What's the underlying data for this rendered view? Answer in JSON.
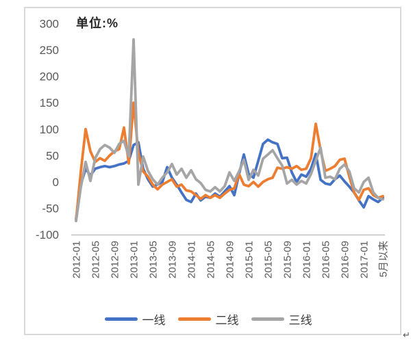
{
  "chart_data": {
    "type": "line",
    "title": "单位:%",
    "x_start": "2012-01",
    "x_end_label": "5月以来",
    "x_tick_labels": [
      "2012-01",
      "2012-05",
      "2012-09",
      "2013-01",
      "2013-05",
      "2013-09",
      "2014-01",
      "2014-05",
      "2014-09",
      "2015-01",
      "2015-05",
      "2015-09",
      "2016-01",
      "2016-05",
      "2016-09",
      "2017-01",
      "5月以来"
    ],
    "y_ticks": [
      300,
      250,
      200,
      150,
      100,
      50,
      0,
      -50,
      -100
    ],
    "ylim": [
      -100,
      300
    ],
    "grid": false,
    "legend_position": "bottom",
    "axis_color": "#bfbfbf",
    "tick_label_color": "#595959",
    "series": [
      {
        "name": "一线",
        "color": "#4472C4",
        "values": [
          -70,
          -5,
          25,
          12,
          25,
          28,
          30,
          28,
          30,
          33,
          35,
          40,
          70,
          75,
          25,
          5,
          -9,
          -5,
          0,
          28,
          8,
          -5,
          -20,
          -34,
          -38,
          -22,
          -35,
          -28,
          -30,
          -22,
          -28,
          -18,
          -8,
          -25,
          15,
          52,
          15,
          8,
          40,
          72,
          80,
          75,
          72,
          45,
          46,
          18,
          0,
          14,
          10,
          25,
          53,
          4,
          -3,
          -5,
          5,
          12,
          1,
          -9,
          -20,
          -35,
          -48,
          -27,
          -33,
          -38,
          -30
        ]
      },
      {
        "name": "二线",
        "color": "#ED7D31",
        "values": [
          -73,
          20,
          100,
          58,
          38,
          45,
          40,
          50,
          58,
          62,
          103,
          35,
          150,
          55,
          20,
          10,
          -5,
          -14,
          -5,
          0,
          5,
          -9,
          -5,
          -16,
          -18,
          -25,
          -32,
          -25,
          -30,
          -25,
          -30,
          -22,
          -15,
          -12,
          15,
          -5,
          -8,
          0,
          -9,
          0,
          5,
          8,
          27,
          25,
          28,
          25,
          30,
          23,
          25,
          45,
          110,
          60,
          21,
          25,
          30,
          42,
          44,
          10,
          -20,
          -34,
          -15,
          -12,
          -25,
          -30,
          -27
        ]
      },
      {
        "name": "三线",
        "color": "#A5A5A5",
        "values": [
          -74,
          -10,
          38,
          2,
          45,
          62,
          70,
          65,
          55,
          72,
          78,
          48,
          270,
          -5,
          48,
          21,
          5,
          -5,
          8,
          18,
          34,
          14,
          25,
          8,
          22,
          5,
          -2,
          -15,
          -18,
          -10,
          -18,
          -8,
          18,
          2,
          20,
          42,
          4,
          23,
          12,
          44,
          52,
          60,
          45,
          31,
          -3,
          4,
          -5,
          2,
          -3,
          15,
          40,
          65,
          8,
          10,
          5,
          25,
          33,
          20,
          -12,
          -20,
          0,
          8,
          -20,
          -30,
          -33
        ]
      }
    ]
  },
  "annotations": {
    "return_mark": "↵"
  }
}
